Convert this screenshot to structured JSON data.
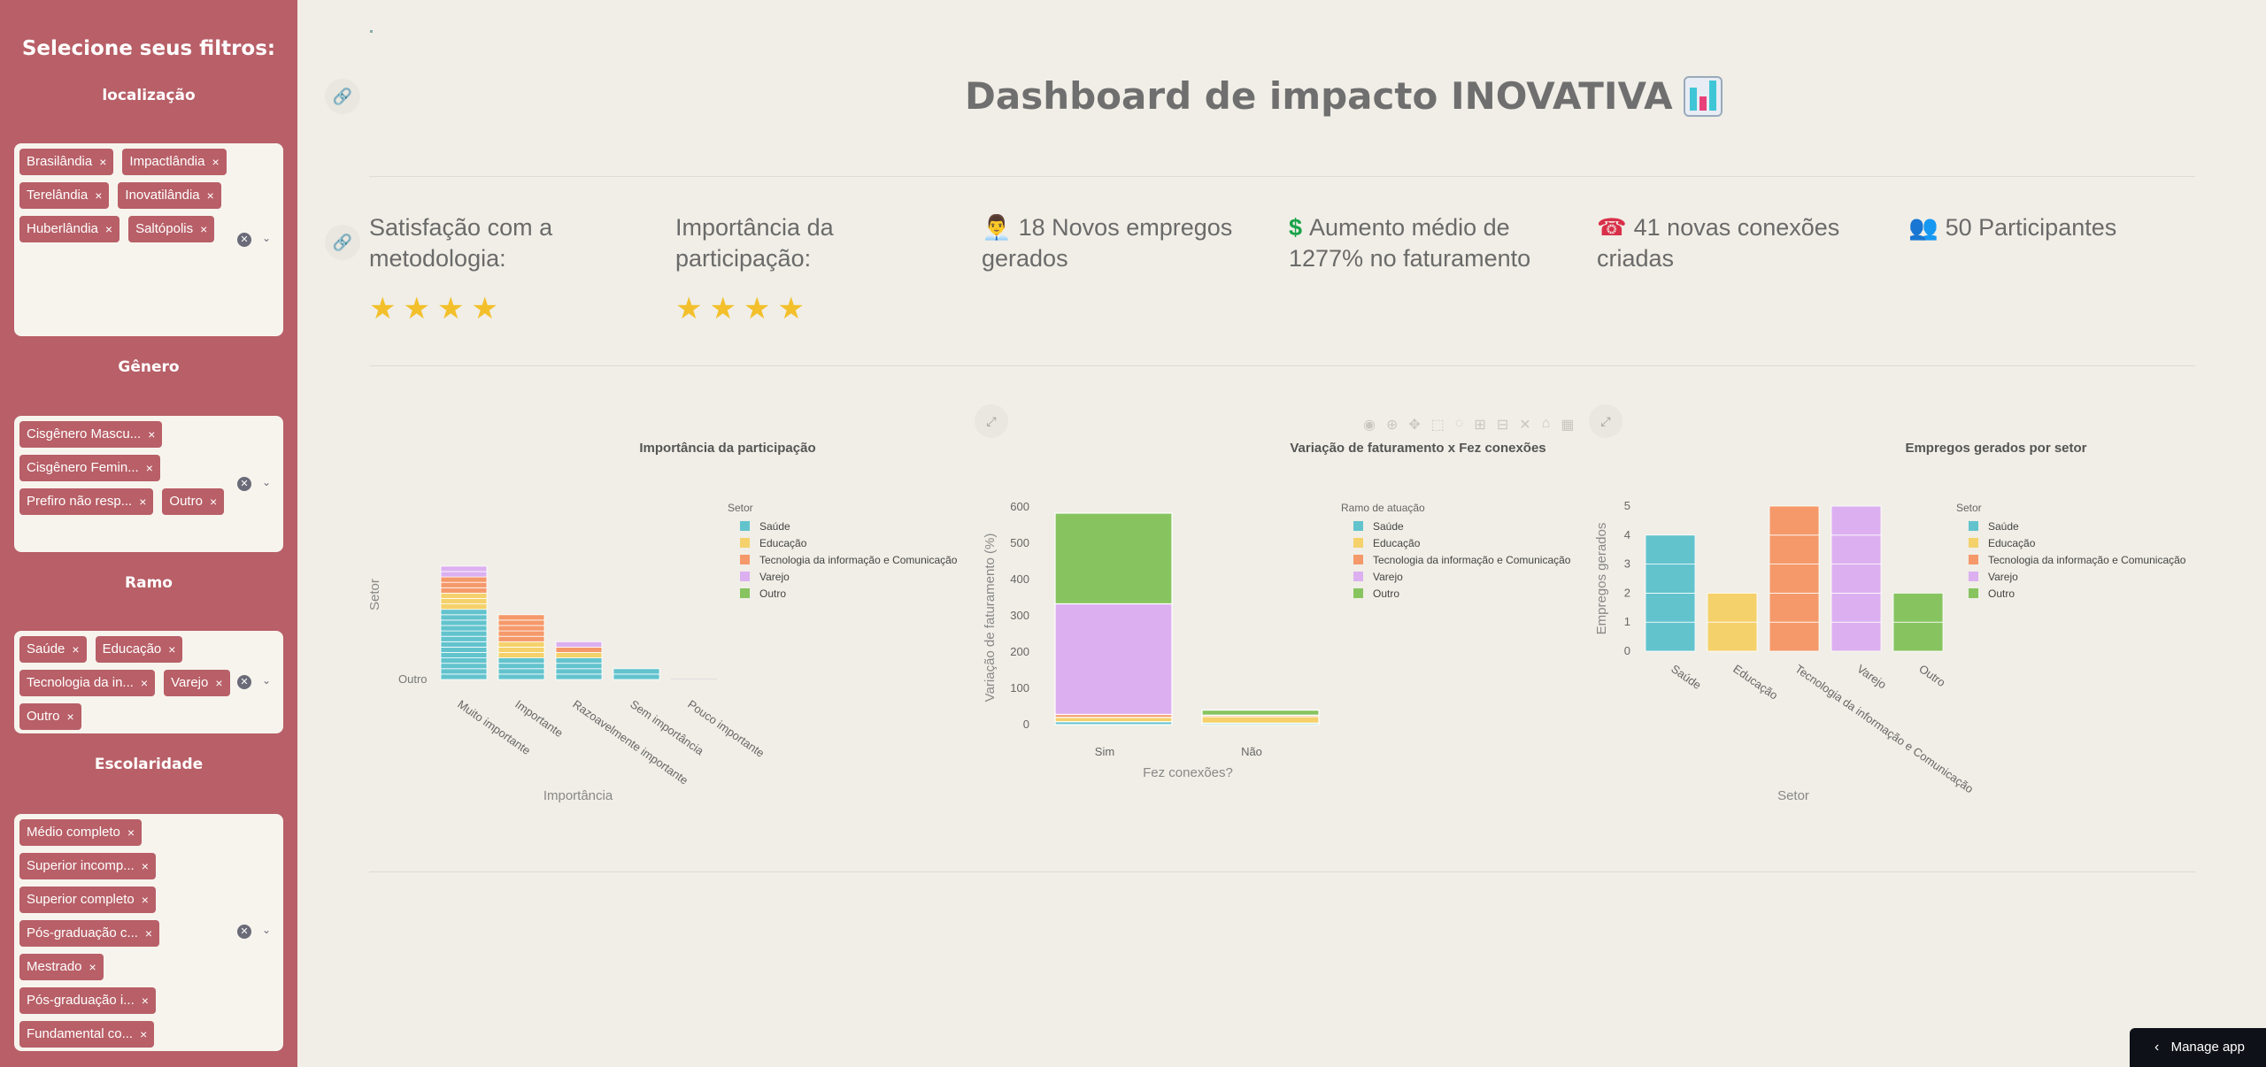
{
  "sidebar": {
    "title": "Selecione seus filtros:",
    "filters": [
      {
        "label": "localização",
        "tags": [
          "Brasilândia",
          "Impactlândia",
          "Terelândia",
          "Inovatilândia",
          "Huberlândia",
          "Saltópolis"
        ]
      },
      {
        "label": "Gênero",
        "tags": [
          "Cisgênero Mascu...",
          "Cisgênero Femin...",
          "Prefiro não resp...",
          "Outro"
        ]
      },
      {
        "label": "Ramo",
        "tags": [
          "Saúde",
          "Educação",
          "Tecnologia da in...",
          "Varejo",
          "Outro"
        ]
      },
      {
        "label": "Escolaridade",
        "tags": [
          "Médio completo",
          "Superior incomp...",
          "Superior completo",
          "Pós-graduação c...",
          "Mestrado",
          "Pós-graduação i...",
          "Fundamental co..."
        ]
      }
    ]
  },
  "header": {
    "title": "Dashboard de impacto INOVATIVA"
  },
  "metrics": {
    "satisfacao": "Satisfação com a metodologia:",
    "importancia": "Importância da participação:",
    "empregos": "18 Novos empregos gerados",
    "faturamento": "Aumento médio de 1277% no faturamento",
    "conexoes": "41 novas conexões criadas",
    "participantes": "50 Participantes",
    "satisfacao_stars": 4,
    "importancia_stars": 4
  },
  "manage_app": "Manage app",
  "colors": {
    "sidebar": "#b85f67",
    "background": "#f0eee6",
    "saude": "#62c3cd",
    "educacao": "#f5d16b",
    "tecnologia": "#f5996a",
    "varejo": "#dcb0f0",
    "outro": "#87c460"
  },
  "chart_data": [
    {
      "type": "bar",
      "title": "Importância da participação",
      "xlabel": "Importância",
      "ylabel": "Setor",
      "y_tick_label": "Outro",
      "legend_title": "Setor",
      "categories": [
        "Muito importante",
        "Importante",
        "Razoavelmente importante",
        "Sem importância",
        "Pouco importante"
      ],
      "series": [
        {
          "name": "Saúde",
          "values": [
            13,
            4,
            4,
            2,
            0
          ]
        },
        {
          "name": "Educação",
          "values": [
            3,
            3,
            1,
            0,
            0
          ]
        },
        {
          "name": "Tecnologia da informação e Comunicação",
          "values": [
            3,
            5,
            1,
            0,
            0
          ]
        },
        {
          "name": "Varejo",
          "values": [
            2,
            0,
            1,
            0,
            0
          ]
        },
        {
          "name": "Outro",
          "values": [
            0,
            0,
            0,
            0,
            0
          ]
        }
      ]
    },
    {
      "type": "bar",
      "title": "Variação de faturamento x Fez conexões",
      "xlabel": "Fez conexões?",
      "ylabel": "Variação de faturamento (%)",
      "legend_title": "Ramo de atuação",
      "categories": [
        "Sim",
        "Não"
      ],
      "ylim": [
        0,
        600
      ],
      "yticks": [
        0,
        100,
        200,
        300,
        400,
        500,
        600
      ],
      "series": [
        {
          "name": "Saúde",
          "values": [
            8,
            4
          ]
        },
        {
          "name": "Educação",
          "values": [
            12,
            18
          ]
        },
        {
          "name": "Tecnologia da informação e Comunicação",
          "values": [
            8,
            4
          ]
        },
        {
          "name": "Varejo",
          "values": [
            305,
            0
          ]
        },
        {
          "name": "Outro",
          "values": [
            250,
            14
          ]
        }
      ]
    },
    {
      "type": "bar",
      "title": "Empregos gerados por setor",
      "xlabel": "Setor",
      "ylabel": "Empregos gerados",
      "legend_title": "Setor",
      "categories": [
        "Saúde",
        "Educação",
        "Tecnologia da informação e Comunicação",
        "Varejo",
        "Outro"
      ],
      "values": [
        4,
        2,
        5,
        5,
        2
      ],
      "ylim": [
        0,
        5
      ],
      "yticks": [
        0,
        1,
        2,
        3,
        4,
        5
      ]
    }
  ]
}
